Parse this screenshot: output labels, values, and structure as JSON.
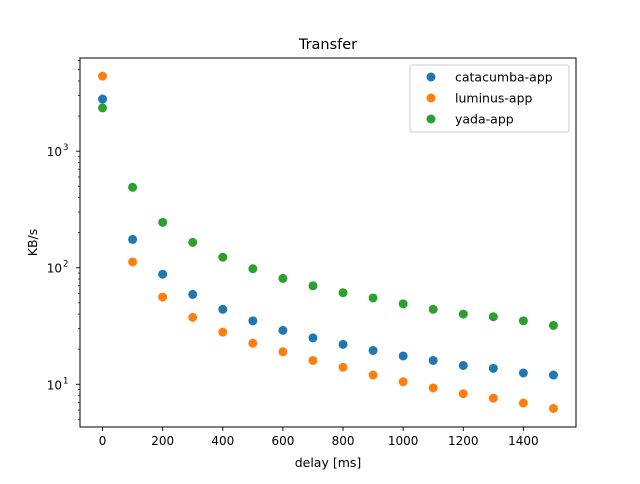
{
  "chart_data": {
    "type": "scatter",
    "title": "Transfer",
    "xlabel": "delay [ms]",
    "ylabel": "KB/s",
    "yscale": "log",
    "xlim": [
      -75,
      1575
    ],
    "ylim": [
      4.3,
      6300
    ],
    "x_ticks": [
      0,
      200,
      400,
      600,
      800,
      1000,
      1200,
      1400
    ],
    "y_ticks": [
      {
        "value": 10,
        "base": "10",
        "exp": "1"
      },
      {
        "value": 100,
        "base": "10",
        "exp": "2"
      },
      {
        "value": 1000,
        "base": "10",
        "exp": "3"
      }
    ],
    "grid": false,
    "legend_position": "top-right",
    "x": [
      0,
      100,
      200,
      300,
      400,
      500,
      600,
      700,
      800,
      900,
      1000,
      1100,
      1200,
      1300,
      1400,
      1500
    ],
    "series": [
      {
        "name": "catacumba-app",
        "color": "#1f77b4",
        "values": [
          2800,
          175,
          88,
          59,
          44,
          35,
          29,
          25,
          22,
          19.5,
          17.5,
          16,
          14.5,
          13.7,
          12.5,
          12
        ]
      },
      {
        "name": "luminus-app",
        "color": "#ff7f0e",
        "values": [
          4400,
          112,
          56,
          37.5,
          28,
          22.5,
          19,
          16,
          14,
          12,
          10.5,
          9.3,
          8.3,
          7.6,
          6.9,
          6.2
        ]
      },
      {
        "name": "yada-app",
        "color": "#2ca02c",
        "values": [
          2350,
          490,
          245,
          165,
          123,
          98,
          81,
          70,
          61,
          55,
          49,
          44,
          40,
          38,
          35,
          32
        ]
      }
    ]
  }
}
